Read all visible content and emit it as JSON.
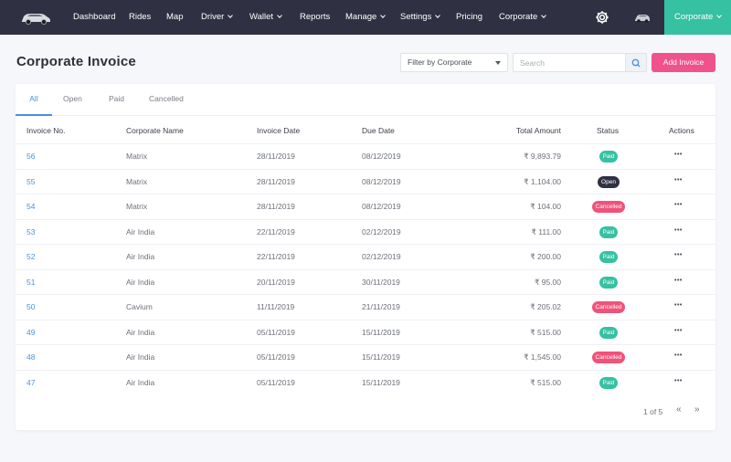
{
  "nav": {
    "items": [
      {
        "label": "Dashboard",
        "dropdown": false
      },
      {
        "label": "Rides",
        "dropdown": false
      },
      {
        "label": "Map",
        "dropdown": false
      },
      {
        "label": "Driver",
        "dropdown": true
      },
      {
        "label": "Wallet",
        "dropdown": true
      },
      {
        "label": "Reports",
        "dropdown": false
      },
      {
        "label": "Manage",
        "dropdown": true
      },
      {
        "label": "Settings",
        "dropdown": true
      },
      {
        "label": "Pricing",
        "dropdown": false
      },
      {
        "label": "Corporate",
        "dropdown": true
      }
    ],
    "account_label": "Corporate",
    "colors": {
      "bar": "#2f3142",
      "account": "#35c1a2"
    }
  },
  "header": {
    "title": "Corporate Invoice",
    "filter_label": "Filter by Corporate",
    "search_placeholder": "Search",
    "add_label": "Add Invoice",
    "add_color": "#f0528c"
  },
  "tabs": [
    {
      "label": "All",
      "active": true
    },
    {
      "label": "Open",
      "active": false
    },
    {
      "label": "Paid",
      "active": false
    },
    {
      "label": "Cancelled",
      "active": false
    }
  ],
  "table": {
    "columns": [
      "Invoice No.",
      "Corporate Name",
      "Invoice Date",
      "Due Date",
      "Total Amount",
      "Status",
      "Actions"
    ],
    "rows": [
      {
        "invoice": "56",
        "corporate": "Matrix",
        "invoice_date": "28/11/2019",
        "due_date": "08/12/2019",
        "amount": "₹ 9,893.79",
        "status": "Paid"
      },
      {
        "invoice": "55",
        "corporate": "Matrix",
        "invoice_date": "28/11/2019",
        "due_date": "08/12/2019",
        "amount": "₹ 1,104.00",
        "status": "Open"
      },
      {
        "invoice": "54",
        "corporate": "Matrix",
        "invoice_date": "28/11/2019",
        "due_date": "08/12/2019",
        "amount": "₹ 104.00",
        "status": "Cancelled"
      },
      {
        "invoice": "53",
        "corporate": "Air India",
        "invoice_date": "22/11/2019",
        "due_date": "02/12/2019",
        "amount": "₹ 111.00",
        "status": "Paid"
      },
      {
        "invoice": "52",
        "corporate": "Air India",
        "invoice_date": "22/11/2019",
        "due_date": "02/12/2019",
        "amount": "₹ 200.00",
        "status": "Paid"
      },
      {
        "invoice": "51",
        "corporate": "Air India",
        "invoice_date": "20/11/2019",
        "due_date": "30/11/2019",
        "amount": "₹ 95.00",
        "status": "Paid"
      },
      {
        "invoice": "50",
        "corporate": "Cavium",
        "invoice_date": "11/11/2019",
        "due_date": "21/11/2019",
        "amount": "₹ 205.02",
        "status": "Cancelled"
      },
      {
        "invoice": "49",
        "corporate": "Air India",
        "invoice_date": "05/11/2019",
        "due_date": "15/11/2019",
        "amount": "₹ 515.00",
        "status": "Paid"
      },
      {
        "invoice": "48",
        "corporate": "Air India",
        "invoice_date": "05/11/2019",
        "due_date": "15/11/2019",
        "amount": "₹ 1,545.00",
        "status": "Cancelled"
      },
      {
        "invoice": "47",
        "corporate": "Air India",
        "invoice_date": "05/11/2019",
        "due_date": "15/11/2019",
        "amount": "₹ 515.00",
        "status": "Paid"
      }
    ],
    "actions_icon": "more-horizontal-icon",
    "status_colors": {
      "Paid": "#35c1a2",
      "Open": "#2f3142",
      "Cancelled": "#f0527a"
    }
  },
  "pagination": {
    "text": "1 of 5",
    "prev_icon": "double-chevron-left-icon",
    "next_icon": "double-chevron-right-icon"
  }
}
